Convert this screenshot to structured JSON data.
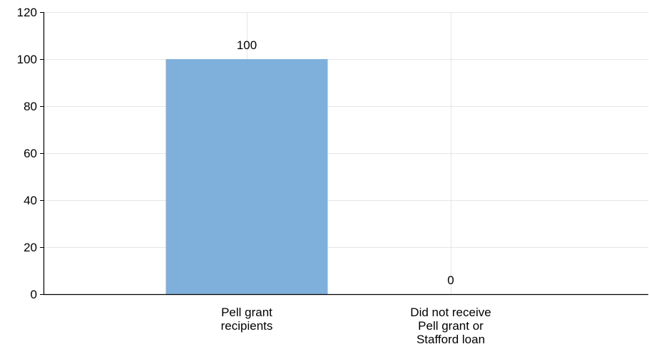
{
  "chart_data": {
    "type": "bar",
    "categories": [
      [
        "Pell grant",
        "recipients"
      ],
      [
        "Did not receive",
        "Pell grant or",
        "Stafford loan"
      ]
    ],
    "values": [
      100,
      0
    ],
    "data_labels": [
      "100",
      "0"
    ],
    "ylim": [
      0,
      120
    ],
    "yticks": [
      0,
      20,
      40,
      60,
      80,
      100,
      120
    ],
    "title": "",
    "xlabel": "",
    "ylabel": "",
    "grid": true,
    "bar_color": "#7fb0dc",
    "grid_color": "#e6e6e6",
    "axis_color": "#000000"
  }
}
